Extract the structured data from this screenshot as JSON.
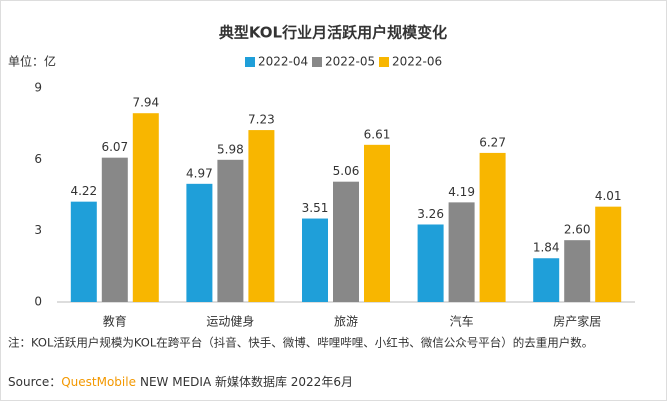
{
  "chart_data": {
    "type": "bar",
    "title": "典型KOL行业月活跃用户规模变化",
    "unit_label": "单位：亿",
    "categories": [
      "教育",
      "运动健身",
      "旅游",
      "汽车",
      "房产家居"
    ],
    "series": [
      {
        "name": "2022-04",
        "color": "#1f9fd9",
        "values": [
          4.22,
          4.97,
          3.51,
          3.26,
          1.84
        ]
      },
      {
        "name": "2022-05",
        "color": "#888888",
        "values": [
          6.07,
          5.98,
          5.06,
          4.19,
          2.6
        ],
        "value_labels": [
          "6.07",
          "5.98",
          "5.06",
          "4.19",
          "2.60"
        ]
      },
      {
        "name": "2022-06",
        "color": "#f8b600",
        "values": [
          7.94,
          7.23,
          6.61,
          6.27,
          4.01
        ]
      }
    ],
    "ylim": [
      0,
      9
    ],
    "yticks": [
      0,
      3,
      6,
      9
    ],
    "grid": false,
    "note": "注：KOL活跃用户规模为KOL在跨平台（抖音、快手、微博、哔哩哔哩、小红书、微信公众号平台）的去重用户数。",
    "source_prefix": "Source：",
    "source_brand": "QuestMobile",
    "source_rest": "NEW MEDIA 新媒体数据库 2022年6月"
  }
}
